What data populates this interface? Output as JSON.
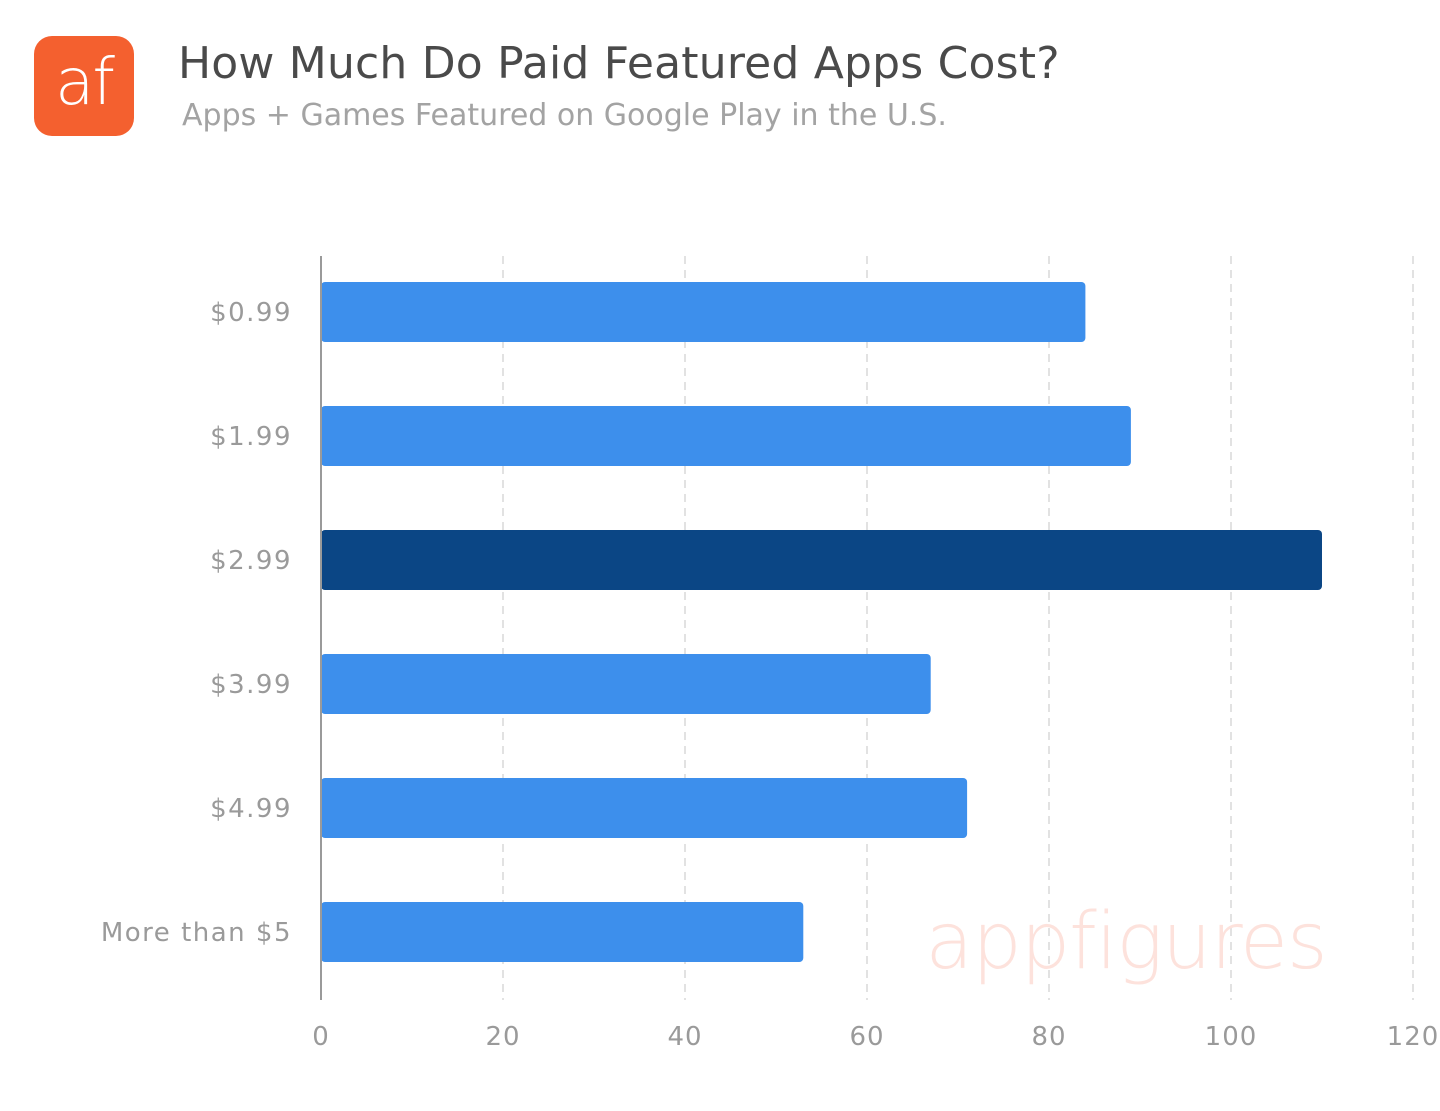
{
  "header": {
    "logo_text": "af",
    "title": "How Much Do Paid Featured Apps Cost?",
    "subtitle": "Apps + Games Featured on Google Play in the U.S."
  },
  "watermark": "appfigures",
  "colors": {
    "logo": "#f4602f",
    "bar": "#3d8fec",
    "bar_highlight": "#0b4685",
    "grid": "#d9d9d9",
    "axis": "#9a9a9a",
    "watermark": "#fde2dc"
  },
  "chart_data": {
    "type": "bar",
    "orientation": "horizontal",
    "categories": [
      "$0.99",
      "$1.99",
      "$2.99",
      "$3.99",
      "$4.99",
      "More than $5"
    ],
    "values": [
      84,
      89,
      110,
      67,
      71,
      53
    ],
    "highlight_index": 2,
    "xticks": [
      0,
      20,
      40,
      60,
      80,
      100,
      120
    ],
    "xlim": [
      0,
      120
    ],
    "grid": "vertical-dashed",
    "legend": "none"
  }
}
